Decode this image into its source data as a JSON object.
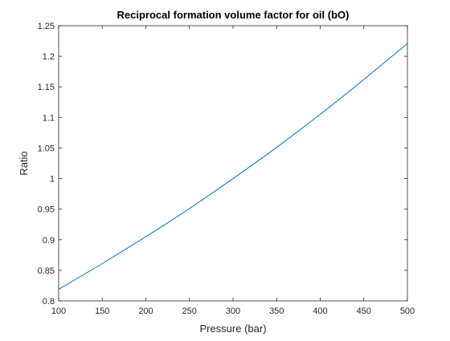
{
  "chart_data": {
    "type": "line",
    "title": "Reciprocal formation volume factor for oil (bO)",
    "xlabel": "Pressure (bar)",
    "ylabel": "Ratio",
    "xlim": [
      100,
      500
    ],
    "ylim": [
      0.8,
      1.25
    ],
    "xticks": [
      100,
      150,
      200,
      250,
      300,
      350,
      400,
      450,
      500
    ],
    "xtick_labels": [
      "100",
      "150",
      "200",
      "250",
      "300",
      "350",
      "400",
      "450",
      "500"
    ],
    "yticks": [
      0.8,
      0.85,
      0.9,
      0.95,
      1.0,
      1.05,
      1.1,
      1.15,
      1.2,
      1.25
    ],
    "ytick_labels": [
      "0.8",
      "0.85",
      "0.9",
      "0.95",
      "1",
      "1.05",
      "1.1",
      "1.15",
      "1.2",
      "1.25"
    ],
    "grid": false,
    "series": [
      {
        "color": "#0072bd",
        "x": [
          100,
          150,
          200,
          250,
          300,
          350,
          400,
          450,
          500
        ],
        "y": [
          0.819,
          0.861,
          0.905,
          0.951,
          1.0,
          1.051,
          1.105,
          1.162,
          1.221
        ]
      }
    ]
  }
}
